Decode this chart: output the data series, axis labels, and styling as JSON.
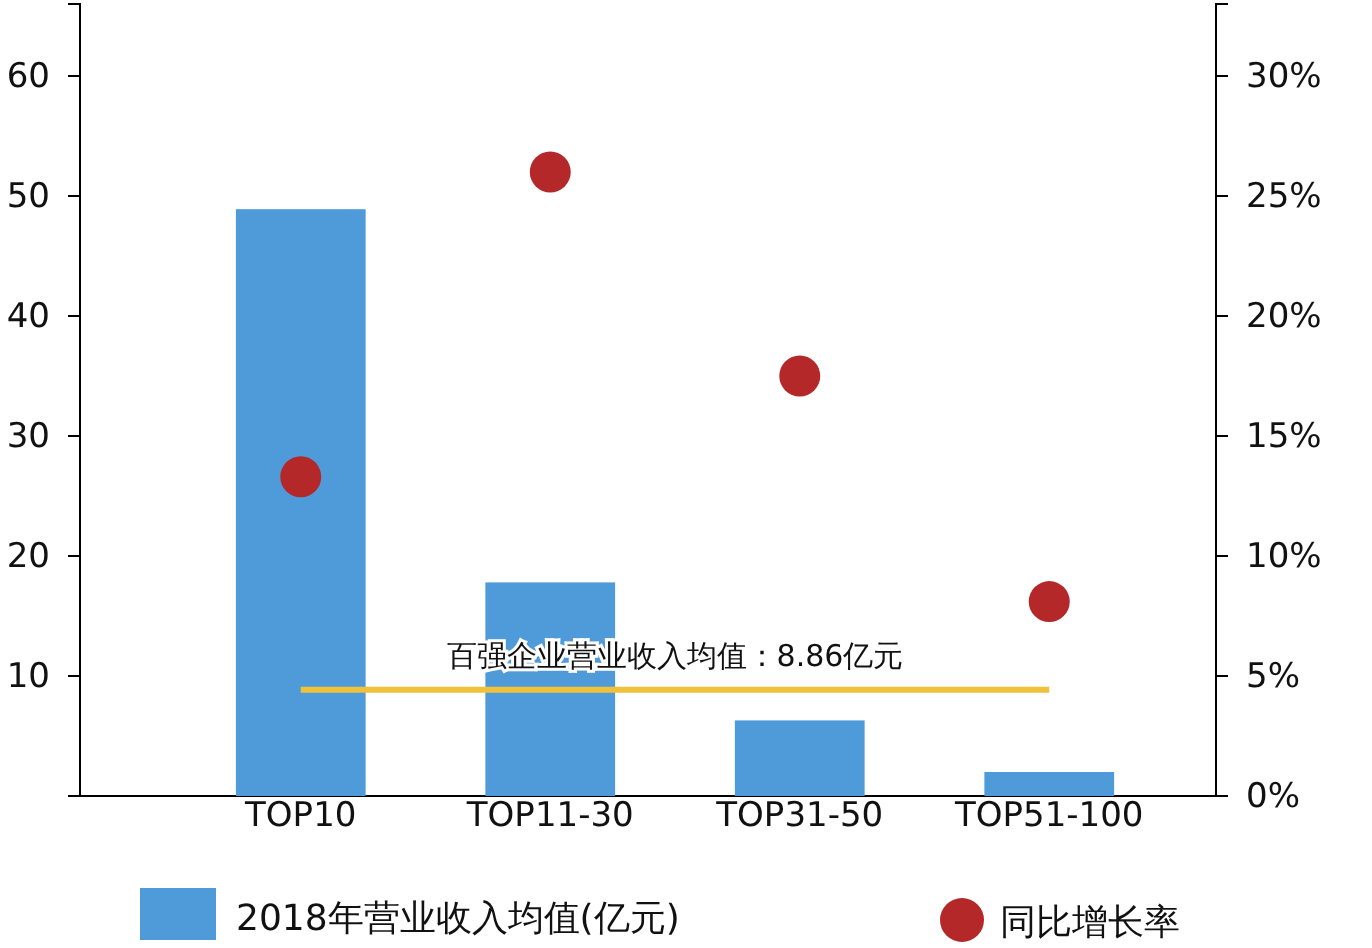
{
  "chart_data": {
    "type": "bar",
    "categories": [
      "TOP10",
      "TOP11-30",
      "TOP31-50",
      "TOP51-100"
    ],
    "series": [
      {
        "name": "2018年营业收入均值(亿元)",
        "color": "#4f9bd9",
        "values": [
          48.9,
          17.8,
          6.3,
          2.0
        ]
      },
      {
        "name": "同比增长率",
        "type": "scatter",
        "axis": "y2",
        "color": "#b5282a",
        "values": [
          13.3,
          26.0,
          17.5,
          8.1
        ]
      }
    ],
    "ylim": [
      0,
      66
    ],
    "yticks": [
      10,
      20,
      30,
      40,
      50,
      60
    ],
    "y2lim": [
      0,
      33
    ],
    "y2ticks": [
      {
        "value": 0,
        "label": "0%"
      },
      {
        "value": 5,
        "label": "5%"
      },
      {
        "value": 10,
        "label": "10%"
      },
      {
        "value": 15,
        "label": "15%"
      },
      {
        "value": 20,
        "label": "20%"
      },
      {
        "value": 25,
        "label": "25%"
      },
      {
        "value": 30,
        "label": "30%"
      }
    ],
    "ref_lines": [
      {
        "axis": "y",
        "value": 8.86,
        "label": "百强企业营业收入均值：8.86亿元",
        "color": "#f0c13a"
      }
    ],
    "grid": false,
    "legend": "bottom",
    "marker": "circle"
  }
}
